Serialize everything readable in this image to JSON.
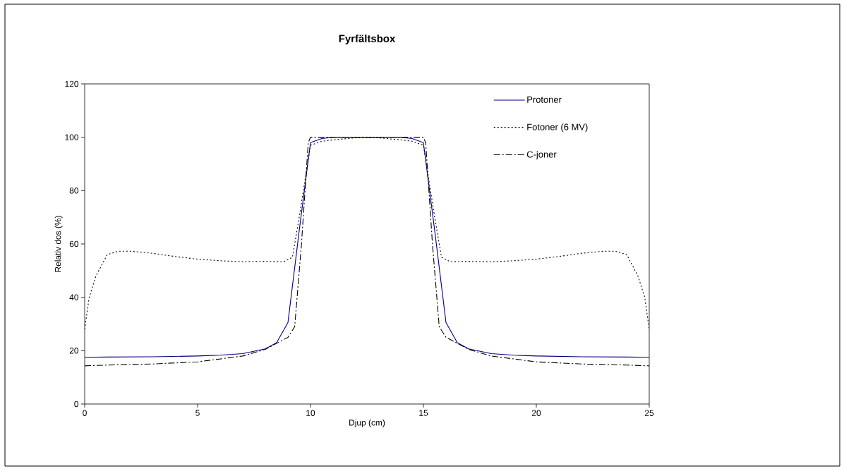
{
  "chart_data": {
    "type": "line",
    "title": "Fyrfältsbox",
    "xlabel": "Djup (cm)",
    "ylabel": "Relativ dos (%)",
    "xlim": [
      0,
      25
    ],
    "ylim": [
      0,
      120
    ],
    "xticks": [
      0,
      5,
      10,
      15,
      20,
      25
    ],
    "yticks": [
      0,
      20,
      40,
      60,
      80,
      100,
      120
    ],
    "grid": false,
    "legend": "top right",
    "marker": "none",
    "series": [
      {
        "name": "Protoner",
        "color": "#000080",
        "line_style": "solid",
        "x": [
          0,
          1,
          3,
          5,
          6,
          7,
          8,
          8.5,
          9,
          9.5,
          10,
          10.5,
          11,
          14,
          14.5,
          15,
          15.5,
          16,
          16.5,
          17,
          18,
          19,
          20,
          22,
          24,
          25
        ],
        "values": [
          17.5,
          17.6,
          17.7,
          18,
          18.3,
          18.9,
          20.7,
          23,
          30.5,
          65,
          98,
          99.5,
          100,
          100,
          99.5,
          98,
          65,
          30.5,
          23,
          20.7,
          18.9,
          18.3,
          18,
          17.7,
          17.6,
          17.5
        ]
      },
      {
        "name": "Fotoner (6 MV)",
        "color": "#000000",
        "line_style": "dotted",
        "x": [
          0,
          0.2,
          0.5,
          1,
          1.5,
          2,
          3,
          4,
          5,
          6,
          7,
          8,
          8.8,
          9.2,
          9.5,
          10,
          10.5,
          11,
          12,
          13,
          14,
          14.5,
          15,
          15.5,
          15.8,
          16.2,
          17,
          18,
          19,
          20,
          21,
          22,
          23,
          23.5,
          24,
          24.5,
          24.8,
          25
        ],
        "values": [
          28,
          40,
          48,
          56,
          57.3,
          57.3,
          56.5,
          55.3,
          54.3,
          53.7,
          53.3,
          53.5,
          53.3,
          55,
          70,
          97,
          98.5,
          99,
          99.8,
          99.8,
          99,
          98.5,
          97,
          70,
          55,
          53.3,
          53.5,
          53.3,
          53.7,
          54.3,
          55.3,
          56.5,
          57.3,
          57.3,
          56,
          48,
          40,
          28
        ]
      },
      {
        "name": "C-joner",
        "color": "#000000",
        "line_style": "dashed",
        "x": [
          0,
          1,
          3,
          5,
          7,
          8,
          9,
          9.3,
          9.6,
          9.9,
          10,
          15,
          15.1,
          15.4,
          15.7,
          16,
          17,
          18,
          20,
          22,
          24,
          25
        ],
        "values": [
          14.3,
          14.6,
          15,
          15.8,
          18,
          20.5,
          25,
          29,
          60,
          98,
          100,
          100,
          98,
          60,
          29,
          25,
          20.5,
          18,
          15.8,
          15,
          14.6,
          14.3
        ]
      }
    ]
  }
}
